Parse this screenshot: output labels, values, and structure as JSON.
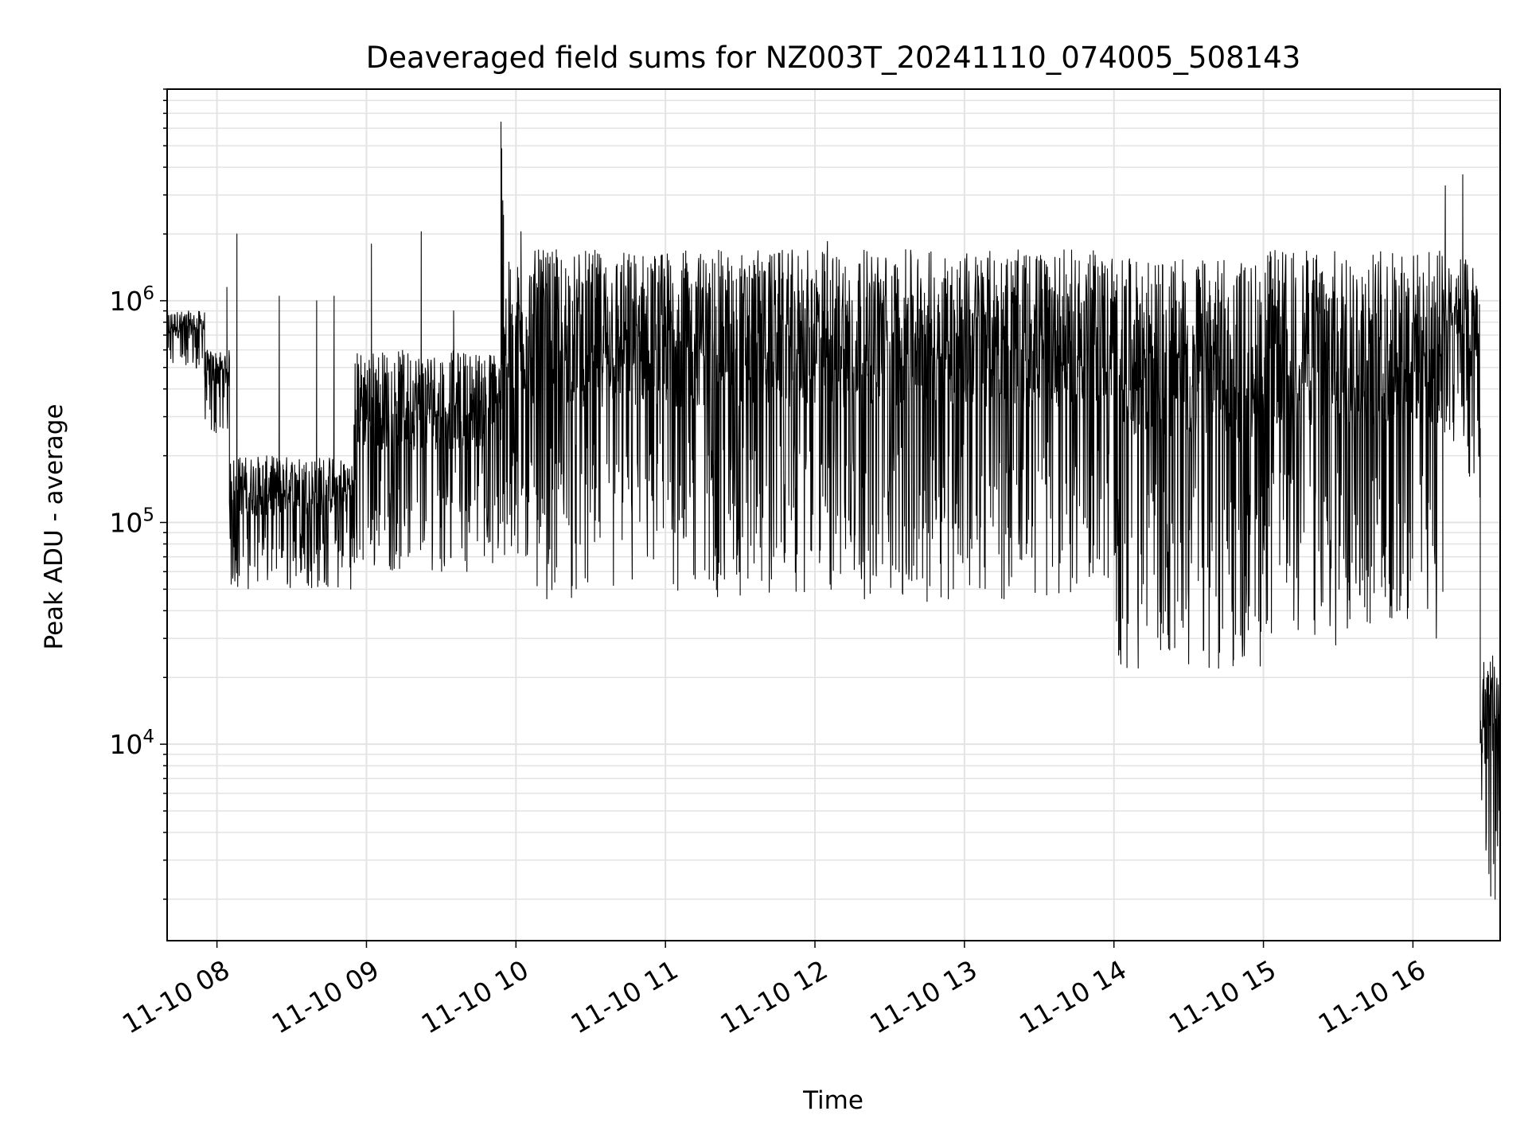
{
  "chart_data": {
    "type": "line",
    "title": "Deaveraged field sums for NZ003T_20241110_074005_508143",
    "xlabel": "Time",
    "ylabel": "Peak ADU - average",
    "yscale": "log",
    "ylim": [
      1300,
      9000000
    ],
    "xlim": [
      "2024-11-10 07:40",
      "2024-11-10 16:35"
    ],
    "grid": true,
    "x_ticks": [
      {
        "x": "2024-11-10 08:00",
        "label": "11-10 08"
      },
      {
        "x": "2024-11-10 09:00",
        "label": "11-10 09"
      },
      {
        "x": "2024-11-10 10:00",
        "label": "11-10 10"
      },
      {
        "x": "2024-11-10 11:00",
        "label": "11-10 11"
      },
      {
        "x": "2024-11-10 12:00",
        "label": "11-10 12"
      },
      {
        "x": "2024-11-10 13:00",
        "label": "11-10 13"
      },
      {
        "x": "2024-11-10 14:00",
        "label": "11-10 14"
      },
      {
        "x": "2024-11-10 15:00",
        "label": "11-10 15"
      },
      {
        "x": "2024-11-10 16:00",
        "label": "11-10 16"
      }
    ],
    "y_ticks": [
      {
        "value": 10000,
        "base": "10",
        "exp": "4"
      },
      {
        "value": 100000,
        "base": "10",
        "exp": "5"
      },
      {
        "value": 1000000,
        "base": "10",
        "exp": "6"
      }
    ],
    "series": [
      {
        "color": "#000000",
        "segments": [
          {
            "start": "2024-11-10 07:40",
            "end": "2024-11-10 07:55",
            "low": 480000,
            "high": 900000,
            "spikes": []
          },
          {
            "start": "2024-11-10 07:55",
            "end": "2024-11-10 08:05",
            "low": 250000,
            "high": 600000,
            "spikes": [
              {
                "t": "2024-11-10 08:04",
                "v": 1150000
              }
            ]
          },
          {
            "start": "2024-11-10 08:05",
            "end": "2024-11-10 08:55",
            "low": 50000,
            "high": 200000,
            "spikes": [
              {
                "t": "2024-11-10 08:08",
                "v": 2000000
              },
              {
                "t": "2024-11-10 08:25",
                "v": 1050000
              },
              {
                "t": "2024-11-10 08:40",
                "v": 1000000
              },
              {
                "t": "2024-11-10 08:47",
                "v": 1050000
              }
            ]
          },
          {
            "start": "2024-11-10 08:55",
            "end": "2024-11-10 09:55",
            "low": 60000,
            "high": 600000,
            "spikes": [
              {
                "t": "2024-11-10 09:02",
                "v": 1800000
              },
              {
                "t": "2024-11-10 09:22",
                "v": 2050000
              },
              {
                "t": "2024-11-10 09:35",
                "v": 900000
              }
            ]
          },
          {
            "start": "2024-11-10 09:54",
            "end": "2024-11-10 09:55",
            "low": 200000,
            "high": 6400000,
            "spikes": [
              {
                "t": "2024-11-10 09:54",
                "v": 6400000
              }
            ]
          },
          {
            "start": "2024-11-10 09:55",
            "end": "2024-11-10 10:05",
            "low": 60000,
            "high": 1500000,
            "spikes": [
              {
                "t": "2024-11-10 10:02",
                "v": 2050000
              }
            ]
          },
          {
            "start": "2024-11-10 10:05",
            "end": "2024-11-10 14:00",
            "low": 45000,
            "high": 1700000,
            "spikes": [
              {
                "t": "2024-11-10 12:05",
                "v": 1850000
              },
              {
                "t": "2024-11-10 11:30",
                "v": 47000
              },
              {
                "t": "2024-11-10 12:45",
                "v": 44000
              }
            ]
          },
          {
            "start": "2024-11-10 14:00",
            "end": "2024-11-10 15:00",
            "low": 22000,
            "high": 1550000,
            "spikes": [
              {
                "t": "2024-11-10 14:30",
                "v": 23000
              },
              {
                "t": "2024-11-10 14:42",
                "v": 22000
              },
              {
                "t": "2024-11-10 14:48",
                "v": 24000
              }
            ]
          },
          {
            "start": "2024-11-10 15:00",
            "end": "2024-11-10 16:12",
            "low": 28000,
            "high": 1700000,
            "spikes": [
              {
                "t": "2024-11-10 15:29",
                "v": 28000
              }
            ]
          },
          {
            "start": "2024-11-10 16:12",
            "end": "2024-11-10 16:22",
            "low": 230000,
            "high": 1600000,
            "spikes": [
              {
                "t": "2024-11-10 16:13",
                "v": 3300000
              },
              {
                "t": "2024-11-10 16:20",
                "v": 3700000
              }
            ]
          },
          {
            "start": "2024-11-10 16:22",
            "end": "2024-11-10 16:27",
            "low": 100000,
            "high": 1400000,
            "spikes": []
          },
          {
            "start": "2024-11-10 16:27",
            "end": "2024-11-10 16:35",
            "low": 2000,
            "high": 25000,
            "spikes": [
              {
                "t": "2024-11-10 16:33",
                "v": 2000
              },
              {
                "t": "2024-11-10 16:32",
                "v": 25000
              }
            ]
          }
        ]
      }
    ]
  }
}
